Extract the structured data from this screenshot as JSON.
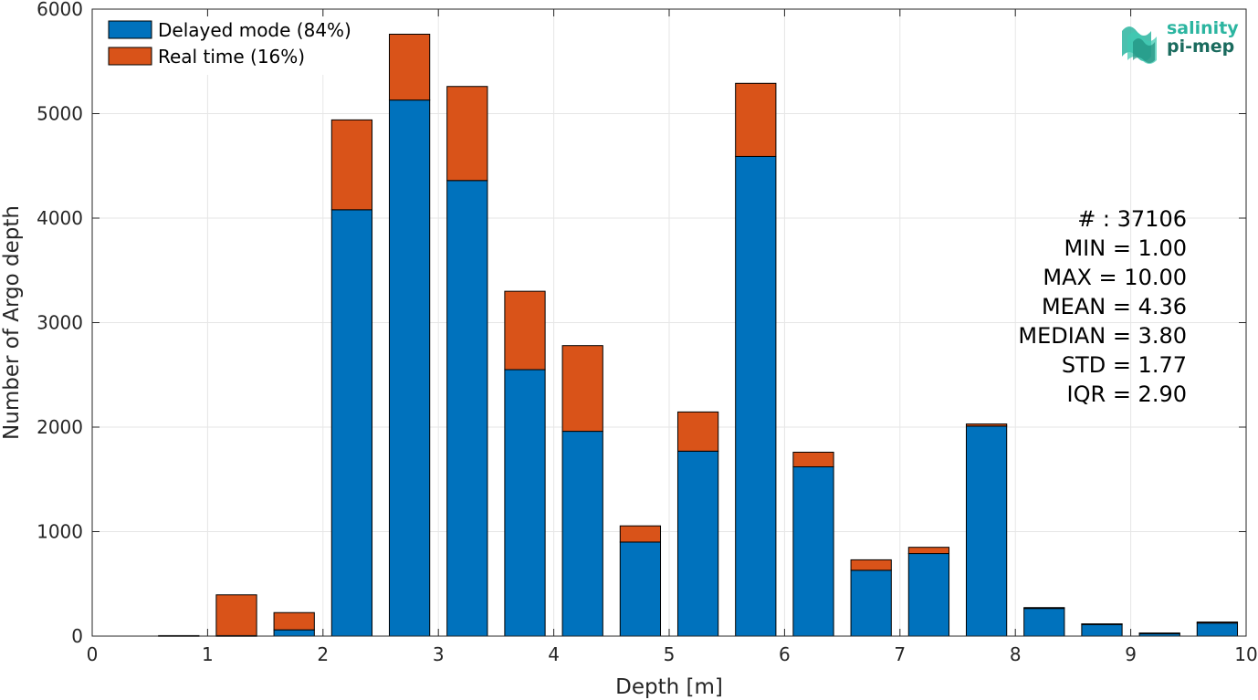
{
  "chart_data": {
    "type": "bar",
    "stacked": true,
    "xlabel": "Depth [m]",
    "ylabel": "Number of Argo depth",
    "xlim": [
      0,
      10
    ],
    "ylim": [
      0,
      6000
    ],
    "xticks": [
      0,
      1,
      2,
      3,
      4,
      5,
      6,
      7,
      8,
      9,
      10
    ],
    "yticks": [
      0,
      1000,
      2000,
      3000,
      4000,
      5000,
      6000
    ],
    "grid": true,
    "legend_position": "top-left",
    "bin_width": 0.5,
    "x": [
      0.75,
      1.25,
      1.75,
      2.25,
      2.75,
      3.25,
      3.75,
      4.25,
      4.75,
      5.25,
      5.75,
      6.25,
      6.75,
      7.25,
      7.75,
      8.25,
      8.75,
      9.25,
      9.75
    ],
    "series": [
      {
        "name": "Delayed mode (84%)",
        "color": "#0072BD",
        "values": [
          0,
          5,
          60,
          4080,
          5130,
          4360,
          2550,
          1960,
          900,
          1770,
          4590,
          1620,
          630,
          790,
          2010,
          265,
          115,
          25,
          125
        ]
      },
      {
        "name": "Real time (16%)",
        "color": "#D95319",
        "values": [
          5,
          390,
          165,
          860,
          630,
          900,
          750,
          820,
          155,
          375,
          700,
          140,
          100,
          60,
          20,
          8,
          2,
          5,
          10
        ]
      }
    ],
    "annotations": [
      "# : 37106",
      "MIN = 1.00",
      "MAX =  10.00",
      "MEAN = 4.36",
      "MEDIAN = 3.80",
      "STD = 1.77",
      "IQR = 2.90"
    ]
  },
  "logo": {
    "line1": "salinity",
    "line2": "pi-mep",
    "color1": "#2bb5a0",
    "color2": "#1a6b5e"
  }
}
